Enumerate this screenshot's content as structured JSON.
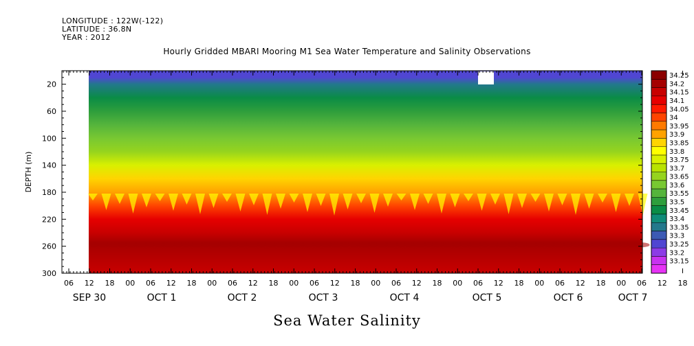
{
  "header": {
    "longitude": "LONGITUDE : 122W(-122)",
    "latitude": "LATITUDE : 36.8N",
    "year": "YEAR : 2012"
  },
  "chart_data": {
    "type": "heatmap",
    "title": "Hourly Gridded MBARI Mooring M1 Sea Water Temperature and Salinity Observations",
    "xlabel": "Sea Water Salinity",
    "ylabel": "DEPTH (m)",
    "ylim": [
      300,
      0
    ],
    "y_ticks": [
      20,
      60,
      100,
      140,
      180,
      220,
      260,
      300
    ],
    "x_hour_ticks": [
      "06",
      "12",
      "18",
      "00",
      "06",
      "12",
      "18",
      "00",
      "06",
      "12",
      "18",
      "00",
      "06",
      "12",
      "18",
      "00",
      "06",
      "12",
      "18",
      "00",
      "06",
      "12",
      "18",
      "00",
      "06",
      "12",
      "18",
      "00",
      "06",
      "12",
      "18",
      "00"
    ],
    "x_day_labels": [
      "SEP 30",
      "OCT  1",
      "OCT  2",
      "OCT  3",
      "OCT  4",
      "OCT  5",
      "OCT  6",
      "OCT  7"
    ],
    "colorbar": {
      "levels": [
        "34.25",
        "34.2",
        "34.15",
        "34.1",
        "34.05",
        "34",
        "33.95",
        "33.9",
        "33.85",
        "33.8",
        "33.75",
        "33.7",
        "33.65",
        "33.6",
        "33.55",
        "33.5",
        "33.45",
        "33.4",
        "33.35",
        "33.3",
        "33.25",
        "33.2",
        "33.15"
      ],
      "colors": [
        "#8b0000",
        "#a50000",
        "#c80000",
        "#e60000",
        "#ff1a00",
        "#ff4400",
        "#ff7a00",
        "#ffa200",
        "#ffd400",
        "#ffff00",
        "#d9f000",
        "#b8e200",
        "#96d41e",
        "#78c832",
        "#55b43c",
        "#2e9e3c",
        "#0a8c46",
        "#0f8c78",
        "#23788c",
        "#3c5ab4",
        "#5046d2",
        "#8c3ce6",
        "#c832f0",
        "#e632f5"
      ]
    },
    "depth_profile": [
      {
        "depth": 10,
        "salinity": 33.25
      },
      {
        "depth": 20,
        "salinity": 33.35
      },
      {
        "depth": 40,
        "salinity": 33.45
      },
      {
        "depth": 60,
        "salinity": 33.5
      },
      {
        "depth": 80,
        "salinity": 33.55
      },
      {
        "depth": 100,
        "salinity": 33.6
      },
      {
        "depth": 120,
        "salinity": 33.65
      },
      {
        "depth": 140,
        "salinity": 33.75
      },
      {
        "depth": 160,
        "salinity": 33.85
      },
      {
        "depth": 180,
        "salinity": 33.9
      },
      {
        "depth": 200,
        "salinity": 34.0
      },
      {
        "depth": 220,
        "salinity": 34.1
      },
      {
        "depth": 240,
        "salinity": 34.15
      },
      {
        "depth": 255,
        "salinity": 34.2
      },
      {
        "depth": 300,
        "salinity": 34.15
      }
    ]
  }
}
